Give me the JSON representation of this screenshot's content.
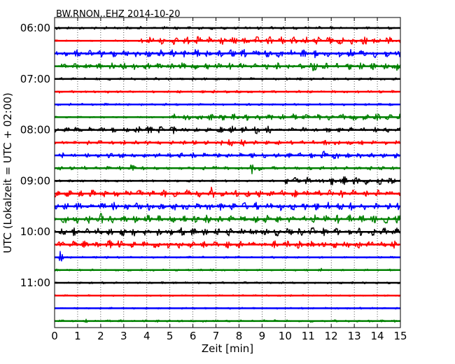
{
  "chart_data": {
    "type": "line",
    "title": "BW.RNON..EHZ 2014-10-20",
    "xlabel": "Zeit  [min]",
    "ylabel": "UTC (Lokalzeit = UTC + 02:00)",
    "xlim": [
      0,
      15
    ],
    "x_ticks": [
      "0",
      "1",
      "2",
      "3",
      "4",
      "5",
      "6",
      "7",
      "8",
      "9",
      "10",
      "11",
      "12",
      "13",
      "14",
      "15"
    ],
    "y_ticks": [
      "06:00",
      "07:00",
      "08:00",
      "09:00",
      "10:00",
      "11:00"
    ],
    "grid": "x-dotted",
    "trace_interval_min": 15,
    "colors": [
      "#000000",
      "#ff0000",
      "#0000ff",
      "#008000"
    ],
    "traces": [
      {
        "start": "06:00",
        "color": "#000000",
        "amplitude": 0.2,
        "events": []
      },
      {
        "start": "06:15",
        "color": "#ff0000",
        "amplitude": 0.12,
        "events": [
          {
            "from": 3.75,
            "to": 15,
            "amplitude": 0.55
          }
        ]
      },
      {
        "start": "06:30",
        "color": "#0000ff",
        "amplitude": 0.5,
        "events": [
          {
            "from": 5.5,
            "to": 15,
            "amplitude": 0.55
          }
        ]
      },
      {
        "start": "06:45",
        "color": "#008000",
        "amplitude": 0.45,
        "events": [
          {
            "from": 11.0,
            "to": 11.6,
            "amplitude": 0.75
          },
          {
            "from": 14.6,
            "to": 15.0,
            "amplitude": 0.95
          }
        ]
      },
      {
        "start": "07:00",
        "color": "#000000",
        "amplitude": 0.18,
        "events": []
      },
      {
        "start": "07:15",
        "color": "#ff0000",
        "amplitude": 0.18,
        "events": []
      },
      {
        "start": "07:30",
        "color": "#0000ff",
        "amplitude": 0.16,
        "events": []
      },
      {
        "start": "07:45",
        "color": "#008000",
        "amplitude": 0.12,
        "events": [
          {
            "from": 5.0,
            "to": 15,
            "amplitude": 0.45
          },
          {
            "from": 7.6,
            "to": 7.8,
            "amplitude": 0.9
          }
        ]
      },
      {
        "start": "08:00",
        "color": "#000000",
        "amplitude": 0.35,
        "events": [
          {
            "from": 0,
            "to": 1.2,
            "amplitude": 0.5
          },
          {
            "from": 3.5,
            "to": 5.5,
            "amplitude": 0.55
          },
          {
            "from": 7.0,
            "to": 9.5,
            "amplitude": 0.5
          }
        ]
      },
      {
        "start": "08:15",
        "color": "#ff0000",
        "amplitude": 0.28,
        "events": [
          {
            "from": 7.2,
            "to": 8.5,
            "amplitude": 0.55
          },
          {
            "from": 11.5,
            "to": 12.2,
            "amplitude": 0.45
          }
        ]
      },
      {
        "start": "08:30",
        "color": "#0000ff",
        "amplitude": 0.35,
        "events": [
          {
            "from": 11.5,
            "to": 12.6,
            "amplitude": 0.55
          }
        ]
      },
      {
        "start": "08:45",
        "color": "#008000",
        "amplitude": 0.25,
        "events": [
          {
            "from": 3.2,
            "to": 3.6,
            "amplitude": 0.55
          },
          {
            "from": 8.5,
            "to": 8.9,
            "amplitude": 0.9
          }
        ]
      },
      {
        "start": "09:00",
        "color": "#000000",
        "amplitude": 0.15,
        "events": [
          {
            "from": 10.0,
            "to": 15,
            "amplitude": 0.6
          }
        ]
      },
      {
        "start": "09:15",
        "color": "#ff0000",
        "amplitude": 0.5,
        "events": [
          {
            "from": 6.8,
            "to": 6.9,
            "amplitude": 0.85
          }
        ]
      },
      {
        "start": "09:30",
        "color": "#0000ff",
        "amplitude": 0.55,
        "events": []
      },
      {
        "start": "09:45",
        "color": "#008000",
        "amplitude": 0.55,
        "events": [
          {
            "from": 2.0,
            "to": 2.4,
            "amplitude": 0.8
          }
        ]
      },
      {
        "start": "10:00",
        "color": "#000000",
        "amplitude": 0.55,
        "events": []
      },
      {
        "start": "10:15",
        "color": "#ff0000",
        "amplitude": 0.5,
        "events": [
          {
            "from": 2.3,
            "to": 2.8,
            "amplitude": 0.7
          }
        ]
      },
      {
        "start": "10:30",
        "color": "#0000ff",
        "amplitude": 0.14,
        "events": [
          {
            "from": 0.2,
            "to": 0.6,
            "amplitude": 0.85
          }
        ]
      },
      {
        "start": "10:45",
        "color": "#008000",
        "amplitude": 0.14,
        "events": [
          {
            "from": 11.5,
            "to": 11.6,
            "amplitude": 0.35
          },
          {
            "from": 14.7,
            "to": 14.8,
            "amplitude": 0.35
          }
        ]
      },
      {
        "start": "11:00",
        "color": "#000000",
        "amplitude": 0.14,
        "events": [
          {
            "from": 1.6,
            "to": 1.7,
            "amplitude": 0.4
          }
        ]
      },
      {
        "start": "11:15",
        "color": "#ff0000",
        "amplitude": 0.12,
        "events": []
      },
      {
        "start": "11:30",
        "color": "#0000ff",
        "amplitude": 0.12,
        "events": [
          {
            "from": 5.7,
            "to": 5.8,
            "amplitude": 0.35
          }
        ]
      },
      {
        "start": "11:45",
        "color": "#008000",
        "amplitude": 0.16,
        "events": [
          {
            "from": 1.3,
            "to": 1.4,
            "amplitude": 0.35
          }
        ]
      }
    ]
  }
}
